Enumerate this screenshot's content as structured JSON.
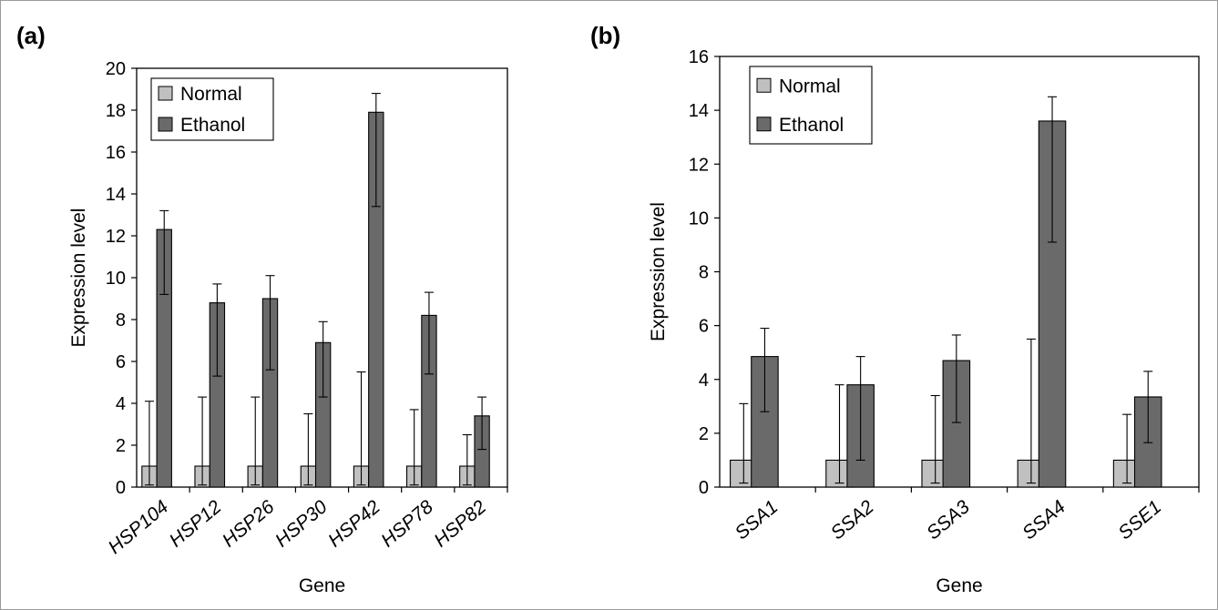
{
  "chart_data": [
    {
      "panel_label": "(a)",
      "type": "bar",
      "categories": [
        "HSP104",
        "HSP12",
        "HSP26",
        "HSP30",
        "HSP42",
        "HSP78",
        "HSP82"
      ],
      "series": [
        {
          "name": "Normal",
          "color": "#c0c0c0",
          "values": [
            1,
            1,
            1,
            1,
            1,
            1,
            1
          ],
          "err_low": [
            0.1,
            0.1,
            0.1,
            0.1,
            0.1,
            0.1,
            0.1
          ],
          "err_high": [
            4.1,
            4.3,
            4.3,
            3.5,
            5.5,
            3.7,
            2.5
          ]
        },
        {
          "name": "Ethanol",
          "color": "#6a6a6a",
          "values": [
            12.3,
            8.8,
            9.0,
            6.9,
            17.9,
            8.2,
            3.4
          ],
          "err_low": [
            9.2,
            5.3,
            5.6,
            4.3,
            13.4,
            5.4,
            1.8
          ],
          "err_high": [
            13.2,
            9.7,
            10.1,
            7.9,
            18.8,
            9.3,
            4.3
          ]
        }
      ],
      "xlabel": "Gene",
      "ylabel": "Expression level",
      "ylim": [
        0,
        20
      ],
      "yticks": [
        0,
        2,
        4,
        6,
        8,
        10,
        12,
        14,
        16,
        18,
        20
      ],
      "grid": false,
      "legend_position": "top-left"
    },
    {
      "panel_label": "(b)",
      "type": "bar",
      "categories": [
        "SSA1",
        "SSA2",
        "SSA3",
        "SSA4",
        "SSE1"
      ],
      "series": [
        {
          "name": "Normal",
          "color": "#c0c0c0",
          "values": [
            1,
            1,
            1,
            1,
            1
          ],
          "err_low": [
            0.15,
            0.15,
            0.15,
            0.15,
            0.15
          ],
          "err_high": [
            3.1,
            3.8,
            3.4,
            5.5,
            2.7
          ]
        },
        {
          "name": "Ethanol",
          "color": "#6a6a6a",
          "values": [
            4.85,
            3.8,
            4.7,
            13.6,
            3.35
          ],
          "err_low": [
            2.8,
            1.0,
            2.4,
            9.1,
            1.65
          ],
          "err_high": [
            5.9,
            4.85,
            5.65,
            14.5,
            4.3
          ]
        }
      ],
      "xlabel": "Gene",
      "ylabel": "Expression level",
      "ylim": [
        0,
        16
      ],
      "yticks": [
        0,
        2,
        4,
        6,
        8,
        10,
        12,
        14,
        16
      ],
      "grid": false,
      "legend_position": "top-left"
    }
  ]
}
